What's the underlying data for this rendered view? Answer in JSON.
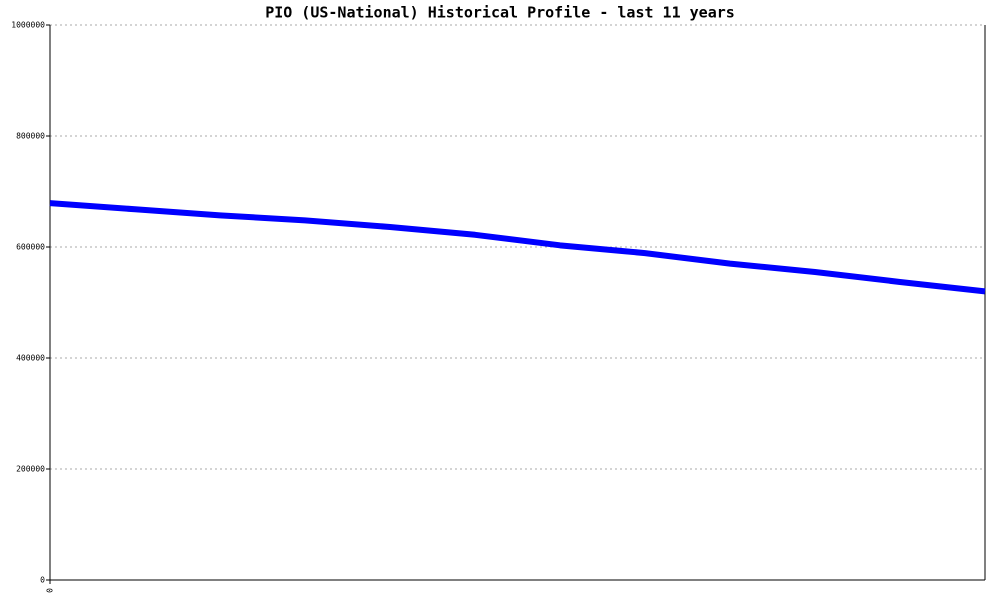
{
  "chart_data": {
    "type": "line",
    "title": "PIO (US-National) Historical Profile - last 11 years",
    "x": [
      0,
      1,
      2,
      3,
      4,
      5,
      6,
      7,
      8,
      9,
      10,
      11
    ],
    "series": [
      {
        "name": "PIO",
        "color": "#0000ff",
        "values": [
          679000,
          668000,
          657000,
          648000,
          636000,
          622000,
          603000,
          589000,
          570000,
          555000,
          537000,
          520000
        ]
      }
    ],
    "xlim": [
      0,
      11
    ],
    "xticks": [
      0
    ],
    "ylim": [
      0,
      1000000
    ],
    "yticks": [
      0,
      200000,
      400000,
      600000,
      800000,
      1000000
    ],
    "grid": true
  }
}
